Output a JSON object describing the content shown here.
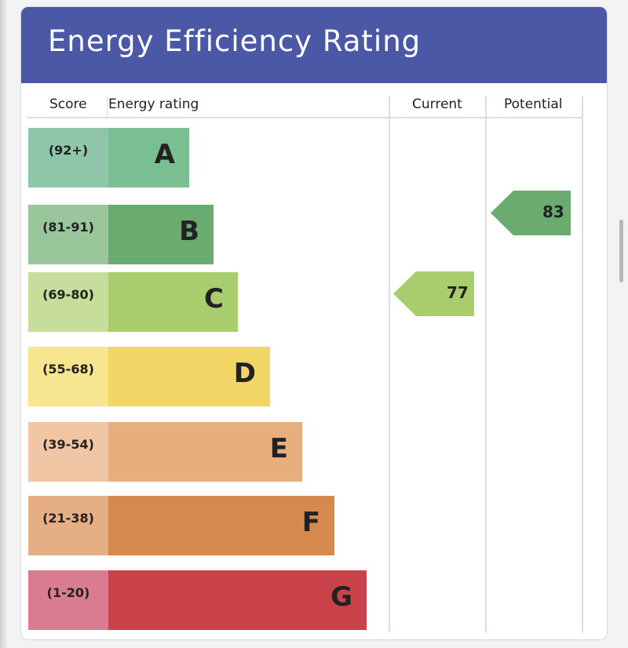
{
  "title": "Energy Efficiency Rating",
  "columns": {
    "score": "Score",
    "rating": "Energy rating",
    "current": "Current",
    "potential": "Potential"
  },
  "bands": [
    {
      "letter": "A",
      "range": "(92+)",
      "bar_color": "#79bf92",
      "score_color": "#8fc6aa"
    },
    {
      "letter": "B",
      "range": "(81-91)",
      "bar_color": "#6aab6f",
      "score_color": "#99c69a"
    },
    {
      "letter": "C",
      "range": "(69-80)",
      "bar_color": "#a9cc6c",
      "score_color": "#c6dd9c"
    },
    {
      "letter": "D",
      "range": "(55-68)",
      "bar_color": "#f2d567",
      "score_color": "#f7e58f"
    },
    {
      "letter": "E",
      "range": "(39-54)",
      "bar_color": "#e8ae7e",
      "score_color": "#f0c6a4"
    },
    {
      "letter": "F",
      "range": "(21-38)",
      "bar_color": "#d6894d",
      "score_color": "#e6ae84"
    },
    {
      "letter": "G",
      "range": "(1-20)",
      "bar_color": "#c94149",
      "score_color": "#d97c90"
    }
  ],
  "current": {
    "value": "77",
    "band": "C",
    "color": "#a9cc6c"
  },
  "potential": {
    "value": "83",
    "band": "B",
    "color": "#6aab6f"
  }
}
